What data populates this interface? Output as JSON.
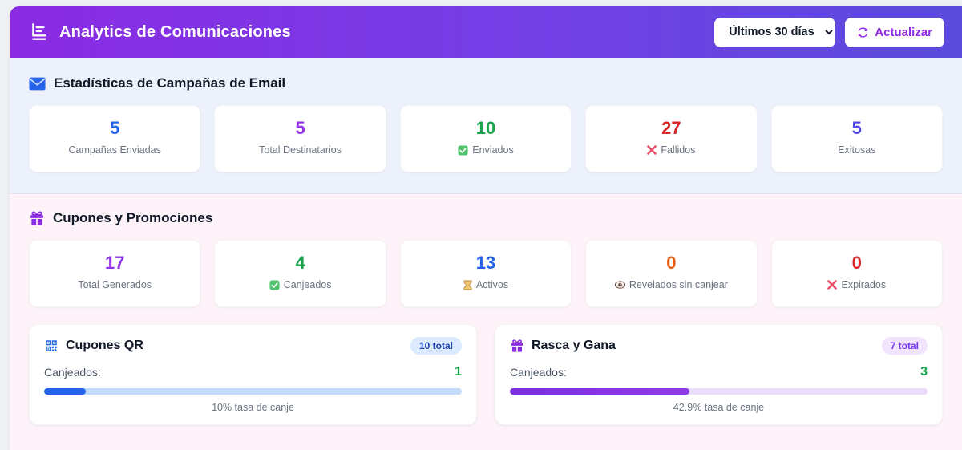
{
  "header": {
    "title": "Analytics de Comunicaciones",
    "icon": "bar-chart-icon",
    "period_select": {
      "value": "Últimos 30 días",
      "options_visible": [
        "Últimos 30 días"
      ]
    },
    "refresh_button": {
      "label": "Actualizar",
      "icon": "refresh-icon"
    }
  },
  "email_section": {
    "title": "Estadísticas de Campañas de Email",
    "icon": "envelope-icon",
    "stats": [
      {
        "value": "5",
        "label": "Campañas Enviadas",
        "icon": "",
        "color": "#2563eb"
      },
      {
        "value": "5",
        "label": "Total Destinatarios",
        "icon": "",
        "color": "#9333ea"
      },
      {
        "value": "10",
        "label": "Enviados",
        "icon": "check-icon",
        "color": "#16a34a"
      },
      {
        "value": "27",
        "label": "Fallidos",
        "icon": "x-icon",
        "color": "#dc2626"
      },
      {
        "value": "5",
        "label": "Exitosas",
        "icon": "",
        "color": "#4f46e5"
      }
    ]
  },
  "coupons_section": {
    "title": "Cupones y Promociones",
    "icon": "gift-icon",
    "stats": [
      {
        "value": "17",
        "label": "Total Generados",
        "icon": "",
        "color": "#9333ea"
      },
      {
        "value": "4",
        "label": "Canjeados",
        "icon": "check-icon",
        "color": "#16a34a"
      },
      {
        "value": "13",
        "label": "Activos",
        "icon": "hourglass-icon",
        "color": "#2563eb"
      },
      {
        "value": "0",
        "label": "Revelados sin canjear",
        "icon": "eye-icon",
        "color": "#ea580c"
      },
      {
        "value": "0",
        "label": "Expirados",
        "icon": "x-icon",
        "color": "#dc2626"
      }
    ],
    "qr_card": {
      "title": "Cupones QR",
      "icon": "qr-code-icon",
      "badge": "10 total",
      "redeemed_label": "Canjeados:",
      "redeemed_value": "1",
      "progress_percent": 10,
      "rate_caption": "10% tasa de canje"
    },
    "scratch_card": {
      "title": "Rasca y Gana",
      "icon": "gift-icon",
      "badge": "7 total",
      "redeemed_label": "Canjeados:",
      "redeemed_value": "3",
      "progress_percent": 42.9,
      "rate_caption": "42.9% tasa de canje"
    }
  },
  "colors": {
    "header_gradient_start": "#8b2be2",
    "header_gradient_end": "#5a4bdb",
    "email_section_bg": "#edf1fb",
    "coupons_section_bg": "#fdf3f9",
    "qr_progress_fill": "#2563eb",
    "qr_progress_track": "#c4dcfb",
    "scratch_progress_fill": "#8b2be2",
    "scratch_progress_track": "#ecdcfc",
    "success_green": "#16a34a",
    "accent_purple": "#8b2be2"
  }
}
